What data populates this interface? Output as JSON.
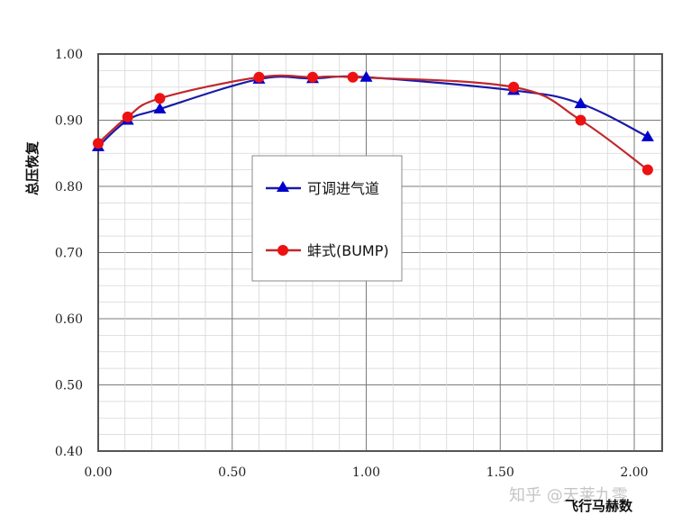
{
  "chart_data": {
    "type": "line",
    "title": "",
    "xlabel": "飞行马赫数",
    "ylabel": "总压恢复",
    "xlim": [
      0.0,
      2.1
    ],
    "ylim": [
      0.4,
      1.0
    ],
    "x_ticks": [
      "0.00",
      "0.50",
      "1.00",
      "1.50",
      "2.00"
    ],
    "y_ticks": [
      "0.40",
      "0.50",
      "0.60",
      "0.70",
      "0.80",
      "0.90",
      "1.00"
    ],
    "grid": true,
    "legend_position": "inside-center-left",
    "series": [
      {
        "name": "可调进气道",
        "color": "#1a1aa8",
        "marker": "triangle",
        "marker_color": "#0000cc",
        "x": [
          0.0,
          0.11,
          0.23,
          0.6,
          0.8,
          1.0,
          1.55,
          1.8,
          2.05
        ],
        "y": [
          0.86,
          0.9,
          0.917,
          0.962,
          0.963,
          0.965,
          0.945,
          0.925,
          0.875
        ]
      },
      {
        "name": "蚌式(BUMP)",
        "color": "#c0282c",
        "marker": "circle",
        "marker_color": "#ee1111",
        "x": [
          0.0,
          0.11,
          0.23,
          0.6,
          0.8,
          0.95,
          1.55,
          1.8,
          2.05
        ],
        "y": [
          0.865,
          0.905,
          0.933,
          0.965,
          0.965,
          0.965,
          0.95,
          0.9,
          0.825
        ]
      }
    ]
  },
  "legend": {
    "items": [
      {
        "label": "可调进气道"
      },
      {
        "label": "蚌式(BUMP)"
      }
    ]
  },
  "watermark": "知乎 @天莱九零"
}
